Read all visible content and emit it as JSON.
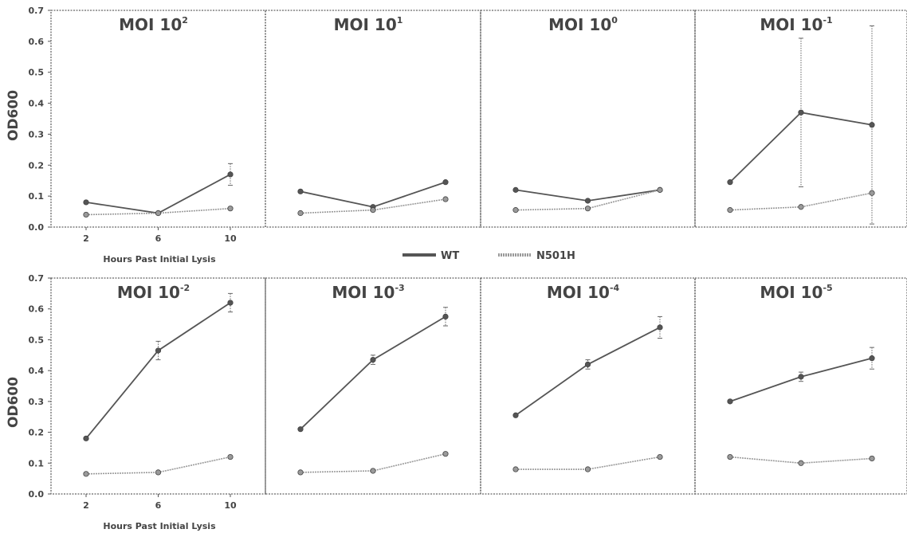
{
  "chart_data": {
    "type": "line",
    "ylabel": "OD600",
    "xlabel": "Hours Past Initial Lysis",
    "x": [
      2,
      6,
      10
    ],
    "x_ticks": [
      "2",
      "6",
      "10"
    ],
    "y_ticks": [
      "0.0",
      "0.1",
      "0.2",
      "0.3",
      "0.4",
      "0.5",
      "0.6",
      "0.7"
    ],
    "ylim": [
      0,
      0.7
    ],
    "legend": [
      {
        "name": "WT",
        "color": "#555555"
      },
      {
        "name": "N501H",
        "color": "#9a9a9a"
      }
    ],
    "panels": [
      {
        "title": "MOI 10",
        "exponent": "2",
        "series": [
          {
            "name": "WT",
            "values": [
              0.08,
              0.045,
              0.17
            ],
            "errors": [
              0,
              0,
              0.035
            ]
          },
          {
            "name": "N501H",
            "values": [
              0.04,
              0.045,
              0.06
            ],
            "errors": [
              0,
              0,
              0
            ]
          }
        ]
      },
      {
        "title": "MOI 10",
        "exponent": "1",
        "series": [
          {
            "name": "WT",
            "values": [
              0.115,
              0.065,
              0.145
            ],
            "errors": [
              0,
              0,
              0
            ]
          },
          {
            "name": "N501H",
            "values": [
              0.045,
              0.055,
              0.09
            ],
            "errors": [
              0,
              0,
              0
            ]
          }
        ]
      },
      {
        "title": "MOI 10",
        "exponent": "0",
        "series": [
          {
            "name": "WT",
            "values": [
              0.12,
              0.085,
              0.12
            ],
            "errors": [
              0,
              0,
              0
            ]
          },
          {
            "name": "N501H",
            "values": [
              0.055,
              0.06,
              0.12
            ],
            "errors": [
              0,
              0,
              0
            ]
          }
        ]
      },
      {
        "title": "MOI 10",
        "exponent": "-1",
        "series": [
          {
            "name": "WT",
            "values": [
              0.145,
              0.37,
              0.33
            ],
            "errors": [
              0,
              0.24,
              0.32
            ]
          },
          {
            "name": "N501H",
            "values": [
              0.055,
              0.065,
              0.11
            ],
            "errors": [
              0,
              0,
              0
            ]
          }
        ]
      },
      {
        "title": "MOI 10",
        "exponent": "-2",
        "series": [
          {
            "name": "WT",
            "values": [
              0.18,
              0.465,
              0.62
            ],
            "errors": [
              0,
              0.03,
              0.03
            ]
          },
          {
            "name": "N501H",
            "values": [
              0.065,
              0.07,
              0.12
            ],
            "errors": [
              0,
              0,
              0
            ]
          }
        ]
      },
      {
        "title": "MOI 10",
        "exponent": "-3",
        "series": [
          {
            "name": "WT",
            "values": [
              0.21,
              0.435,
              0.575
            ],
            "errors": [
              0,
              0.015,
              0.03
            ]
          },
          {
            "name": "N501H",
            "values": [
              0.07,
              0.075,
              0.13
            ],
            "errors": [
              0,
              0,
              0
            ]
          }
        ]
      },
      {
        "title": "MOI 10",
        "exponent": "-4",
        "series": [
          {
            "name": "WT",
            "values": [
              0.255,
              0.42,
              0.54
            ],
            "errors": [
              0,
              0.015,
              0.035
            ]
          },
          {
            "name": "N501H",
            "values": [
              0.08,
              0.08,
              0.12
            ],
            "errors": [
              0,
              0,
              0
            ]
          }
        ]
      },
      {
        "title": "MOI 10",
        "exponent": "-5",
        "series": [
          {
            "name": "WT",
            "values": [
              0.3,
              0.38,
              0.44
            ],
            "errors": [
              0,
              0.015,
              0.035
            ]
          },
          {
            "name": "N501H",
            "values": [
              0.12,
              0.1,
              0.115
            ],
            "errors": [
              0,
              0,
              0
            ]
          }
        ]
      }
    ]
  }
}
